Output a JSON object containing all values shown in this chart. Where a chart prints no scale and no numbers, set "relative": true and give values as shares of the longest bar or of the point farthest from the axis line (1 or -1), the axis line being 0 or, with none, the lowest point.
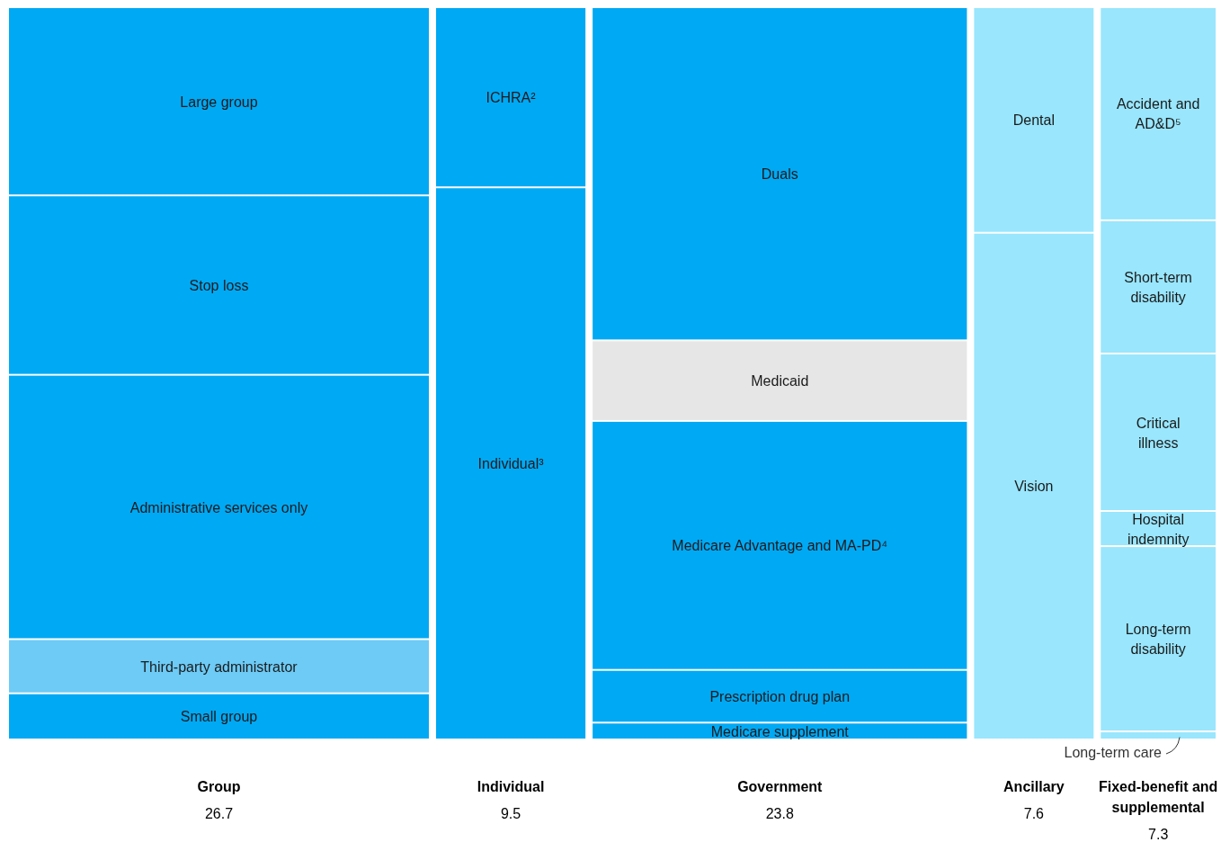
{
  "chart_data": {
    "type": "bar",
    "stacked": true,
    "relative": true,
    "legend": false,
    "categories": [
      "Group",
      "Individual",
      "Government",
      "Ancillary",
      "Fixed-benefit and supplemental"
    ],
    "annotations": [
      "26.7",
      "9.5",
      "23.8",
      "7.6",
      "7.3"
    ],
    "series": [
      {
        "name": "Small group",
        "color": "#00a9f4",
        "values": [
          0.063,
          null,
          null,
          null,
          null
        ]
      },
      {
        "name": "Third-party administrator",
        "color": "#6dcbf6",
        "values": [
          0.074,
          null,
          null,
          null,
          null
        ]
      },
      {
        "name": "Administrative services only",
        "color": "#00a9f4",
        "values": [
          0.361,
          null,
          null,
          null,
          null
        ]
      },
      {
        "name": "Stop loss",
        "color": "#00a9f4",
        "values": [
          0.245,
          null,
          null,
          null,
          null
        ]
      },
      {
        "name": "Large group",
        "color": "#00a9f4",
        "values": [
          0.257,
          null,
          null,
          null,
          null
        ]
      },
      {
        "name": "Individual³",
        "color": "#00a9f4",
        "values": [
          null,
          0.754,
          null,
          null,
          null
        ]
      },
      {
        "name": "ICHRA²",
        "color": "#00a9f4",
        "values": [
          null,
          0.246,
          null,
          null,
          null
        ]
      },
      {
        "name": "Medicare supplement",
        "color": "#00a9f4",
        "values": [
          null,
          null,
          0.023,
          null,
          null
        ]
      },
      {
        "name": "Prescription drug plan",
        "color": "#00a9f4",
        "values": [
          null,
          null,
          0.072,
          null,
          null
        ]
      },
      {
        "name": "Medicare Advantage and MA-PD⁴",
        "color": "#00a9f4",
        "values": [
          null,
          null,
          0.34,
          null,
          null
        ]
      },
      {
        "name": "Medicaid",
        "color": "#e6e6e6",
        "values": [
          null,
          null,
          0.11,
          null,
          null
        ]
      },
      {
        "name": "Duals",
        "color": "#00a9f4",
        "values": [
          null,
          null,
          0.455,
          null,
          null
        ]
      },
      {
        "name": "Vision",
        "color": "#99e6fd",
        "values": [
          null,
          null,
          null,
          0.692,
          null
        ]
      },
      {
        "name": "Dental",
        "color": "#99e6fd",
        "values": [
          null,
          null,
          null,
          0.308,
          null
        ]
      },
      {
        "name": "Long-term care",
        "color": "#99e6fd",
        "values": [
          null,
          null,
          null,
          null,
          0.011
        ]
      },
      {
        "name": "Long-term disability",
        "color": "#99e6fd",
        "values": [
          null,
          null,
          null,
          null,
          0.253
        ]
      },
      {
        "name": "Hospital indemnity",
        "color": "#99e6fd",
        "values": [
          null,
          null,
          null,
          null,
          0.048
        ]
      },
      {
        "name": "Critical illness",
        "color": "#99e6fd",
        "values": [
          null,
          null,
          null,
          null,
          0.215
        ]
      },
      {
        "name": "Short-term disability",
        "color": "#99e6fd",
        "values": [
          null,
          null,
          null,
          null,
          0.182
        ]
      },
      {
        "name": "Accident and AD&D⁵",
        "color": "#99e6fd",
        "values": [
          null,
          null,
          null,
          null,
          0.291
        ]
      }
    ]
  }
}
